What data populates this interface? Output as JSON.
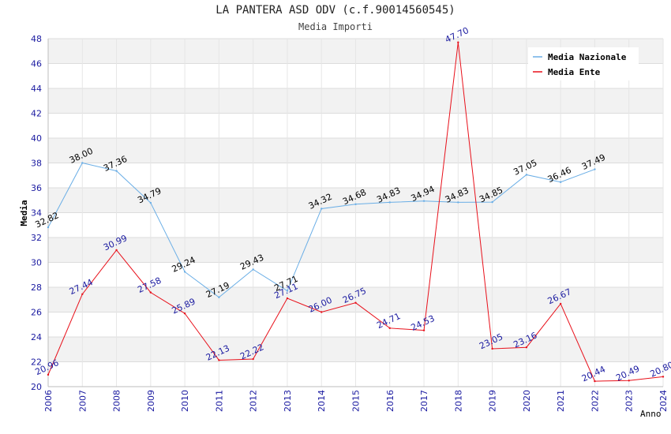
{
  "chart_data": {
    "type": "line",
    "title": "LA PANTERA ASD ODV (c.f.90014560545)",
    "subtitle": "Media Importi",
    "xlabel": "Anno",
    "ylabel": "Media",
    "ylim": [
      20,
      48
    ],
    "yticks": [
      "20",
      "22",
      "24",
      "26",
      "28",
      "30",
      "32",
      "34",
      "36",
      "38",
      "40",
      "42",
      "44",
      "46",
      "48"
    ],
    "x": [
      "2006",
      "2007",
      "2008",
      "2009",
      "2010",
      "2011",
      "2012",
      "2013",
      "2014",
      "2015",
      "2016",
      "2017",
      "2018",
      "2019",
      "2020",
      "2021",
      "2022",
      "2023",
      "2024"
    ],
    "grid": true,
    "legend_position": "top-right",
    "series": [
      {
        "name": "Media Nazionale",
        "color": "#6aaee6",
        "label_color": "#000000",
        "values": [
          32.82,
          38.0,
          37.36,
          34.79,
          29.24,
          27.19,
          29.43,
          27.71,
          34.32,
          34.68,
          34.83,
          34.94,
          34.83,
          34.85,
          37.05,
          36.46,
          37.49,
          null,
          null
        ],
        "labels": [
          "32.82",
          "38.00",
          "37.36",
          "34.79",
          "29.24",
          "27.19",
          "29.43",
          "27.71",
          "34.32",
          "34.68",
          "34.83",
          "34.94",
          "34.83",
          "34.85",
          "37.05",
          "36.46",
          "37.49",
          null,
          null
        ]
      },
      {
        "name": "Media Ente",
        "color": "#e8101a",
        "label_color": "#1a1aa0",
        "values": [
          20.96,
          27.44,
          30.99,
          27.58,
          25.89,
          22.13,
          22.22,
          27.11,
          26.0,
          26.75,
          24.71,
          24.53,
          47.7,
          23.05,
          23.16,
          26.67,
          20.44,
          20.49,
          20.8
        ],
        "labels": [
          "20.96",
          "27.44",
          "30.99",
          "27.58",
          "25.89",
          "22.13",
          "22.22",
          "27.11",
          "26.00",
          "26.75",
          "24.71",
          "24.53",
          "47.70",
          "23.05",
          "23.16",
          "26.67",
          "20.44",
          "20.49",
          "20.80"
        ]
      }
    ]
  }
}
